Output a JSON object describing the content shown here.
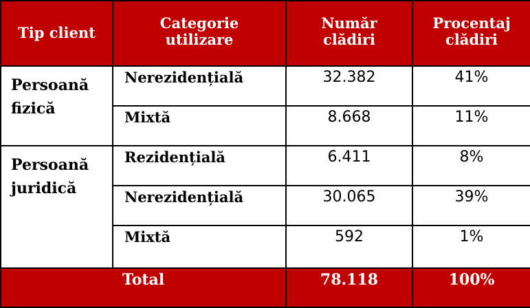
{
  "header": {
    "col1": "Tip client",
    "col2_line1": "Categorie",
    "col2_line2": "utilizare",
    "col3_line1": "Număr",
    "col3_line2": "clădiri",
    "col4_line1": "Procentaj",
    "col4_line2": "clădiri"
  },
  "groups": [
    {
      "client_line1": "Persoană",
      "client_line2": "fizică",
      "rows": [
        {
          "category": "Nerezidențială",
          "count": "32.382",
          "percent": "41%"
        },
        {
          "category": "Mixtă",
          "count": "8.668",
          "percent": "11%"
        }
      ]
    },
    {
      "client_line1": "Persoană",
      "client_line2": "juridică",
      "rows": [
        {
          "category": "Rezidențială",
          "count": "6.411",
          "percent": "8%"
        },
        {
          "category": "Nerezidențială",
          "count": "30.065",
          "percent": "39%"
        },
        {
          "category": "Mixtă",
          "count": "592",
          "percent": "1%"
        }
      ]
    }
  ],
  "total": {
    "label": "Total",
    "count": "78.118",
    "percent": "100%"
  },
  "colors": {
    "header_bg": "#c00000",
    "header_text": "#ffffff",
    "border": "#000000"
  }
}
